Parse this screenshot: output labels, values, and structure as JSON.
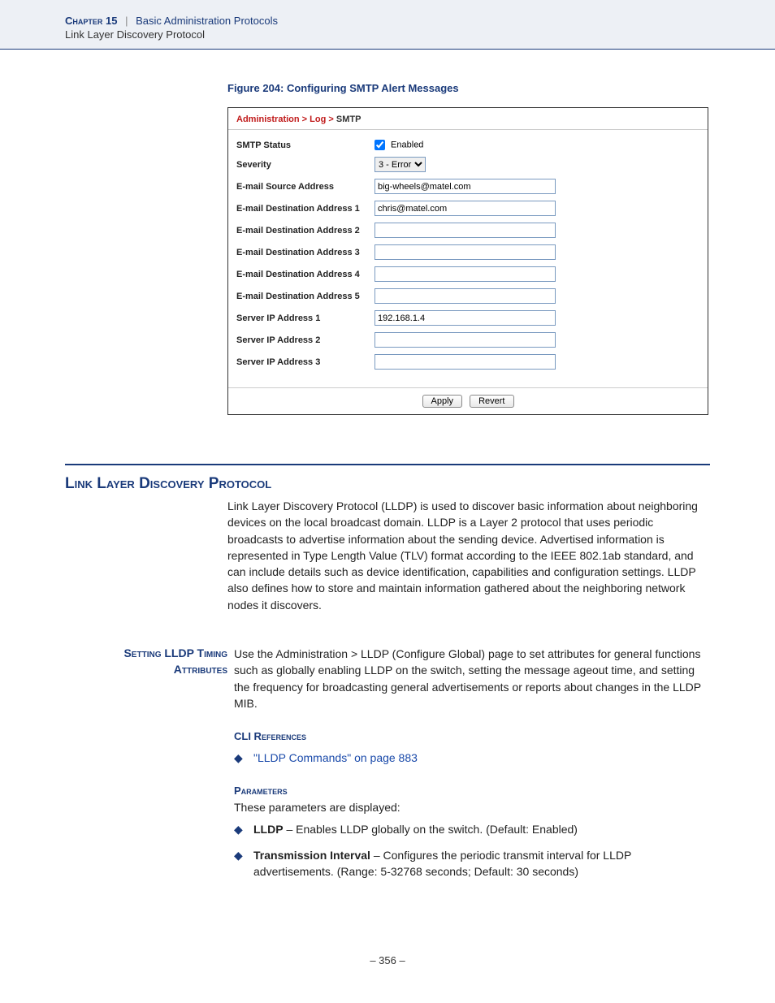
{
  "header": {
    "chapter_label": "Chapter 15",
    "separator": "|",
    "trail": "Basic Administration Protocols",
    "subline": "Link Layer Discovery Protocol"
  },
  "figure": {
    "caption": "Figure 204:  Configuring SMTP Alert Messages"
  },
  "panel": {
    "breadcrumb_parts": [
      "Administration >",
      "Log >",
      "SMTP"
    ],
    "rows": [
      {
        "label": "SMTP Status",
        "type": "checkbox",
        "checked": true,
        "text": "Enabled"
      },
      {
        "label": "Severity",
        "type": "select",
        "value": "3 - Error"
      },
      {
        "label": "E-mail Source Address",
        "type": "text",
        "value": "big-wheels@matel.com"
      },
      {
        "label": "E-mail Destination Address 1",
        "type": "text",
        "value": "chris@matel.com"
      },
      {
        "label": "E-mail Destination Address 2",
        "type": "text",
        "value": ""
      },
      {
        "label": "E-mail Destination Address 3",
        "type": "text",
        "value": ""
      },
      {
        "label": "E-mail Destination Address 4",
        "type": "text",
        "value": ""
      },
      {
        "label": "E-mail Destination Address 5",
        "type": "text",
        "value": ""
      },
      {
        "label": "Server IP Address 1",
        "type": "text",
        "value": "192.168.1.4"
      },
      {
        "label": "Server IP Address 2",
        "type": "text",
        "value": ""
      },
      {
        "label": "Server IP Address 3",
        "type": "text",
        "value": ""
      }
    ],
    "buttons": {
      "apply": "Apply",
      "revert": "Revert"
    }
  },
  "section": {
    "title": "Link Layer Discovery Protocol",
    "intro": "Link Layer Discovery Protocol (LLDP) is used to discover basic information about neighboring devices on the local broadcast domain. LLDP is a Layer 2 protocol that uses periodic broadcasts to advertise information about the sending device. Advertised information is represented in Type Length Value (TLV) format according to the IEEE 802.1ab standard, and can include details such as device identification, capabilities and configuration settings. LLDP also defines how to store and maintain information gathered about the neighboring network nodes it discovers."
  },
  "subsection": {
    "side_heading_line1": "Setting LLDP Timing",
    "side_heading_line2": "Attributes",
    "intro": "Use the Administration > LLDP (Configure Global) page to set attributes for general functions such as globally enabling LLDP on the switch, setting the message ageout time, and setting the frequency for broadcasting general advertisements or reports about changes in the LLDP MIB.",
    "cli_heading": "CLI References",
    "cli_link": "\"LLDP Commands\" on page 883",
    "params_heading": "Parameters",
    "params_intro": "These parameters are displayed:",
    "params": [
      {
        "term": "LLDP",
        "desc": " – Enables LLDP globally on the switch. (Default: Enabled)"
      },
      {
        "term": "Transmission Interval",
        "desc": " – Configures the periodic transmit interval for LLDP advertisements. (Range: 5-32768 seconds; Default: 30 seconds)"
      }
    ]
  },
  "footer": {
    "page": "–  356  –"
  }
}
